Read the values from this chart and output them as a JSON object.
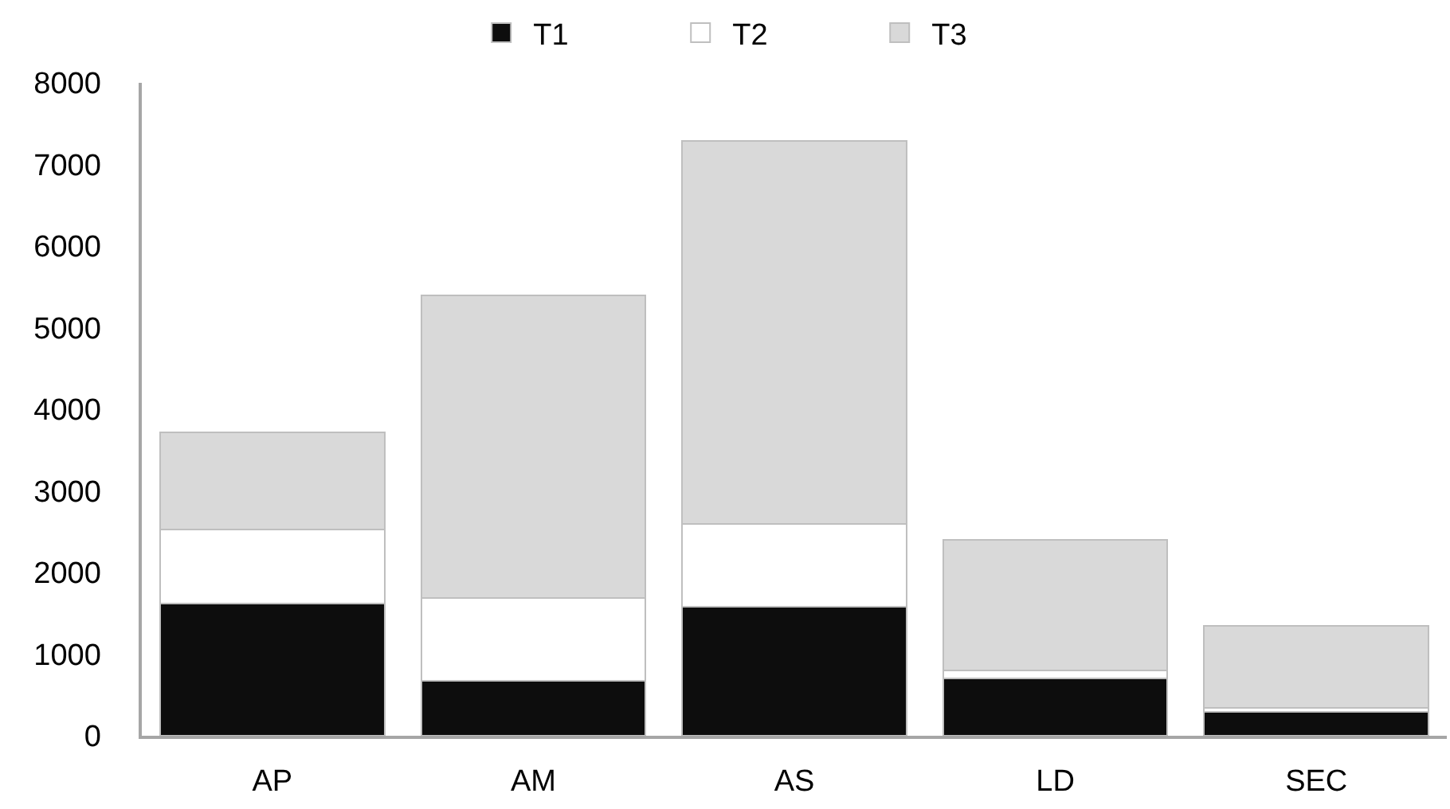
{
  "chart_data": {
    "type": "bar",
    "stacked": true,
    "categories": [
      "AP",
      "AM",
      "AS",
      "LD",
      "SEC"
    ],
    "series": [
      {
        "name": "T1",
        "color": "#0d0d0d",
        "values": [
          1620,
          670,
          1580,
          700,
          290
        ]
      },
      {
        "name": "T2",
        "color": "#ffffff",
        "values": [
          910,
          1020,
          1020,
          100,
          50
        ]
      },
      {
        "name": "T3",
        "color": "#d9d9d9",
        "values": [
          1190,
          3710,
          4690,
          1600,
          1010
        ]
      }
    ],
    "ylim": [
      0,
      8000
    ],
    "yticks": [
      0,
      1000,
      2000,
      3000,
      4000,
      5000,
      6000,
      7000,
      8000
    ],
    "grid": false,
    "legend": "top"
  }
}
